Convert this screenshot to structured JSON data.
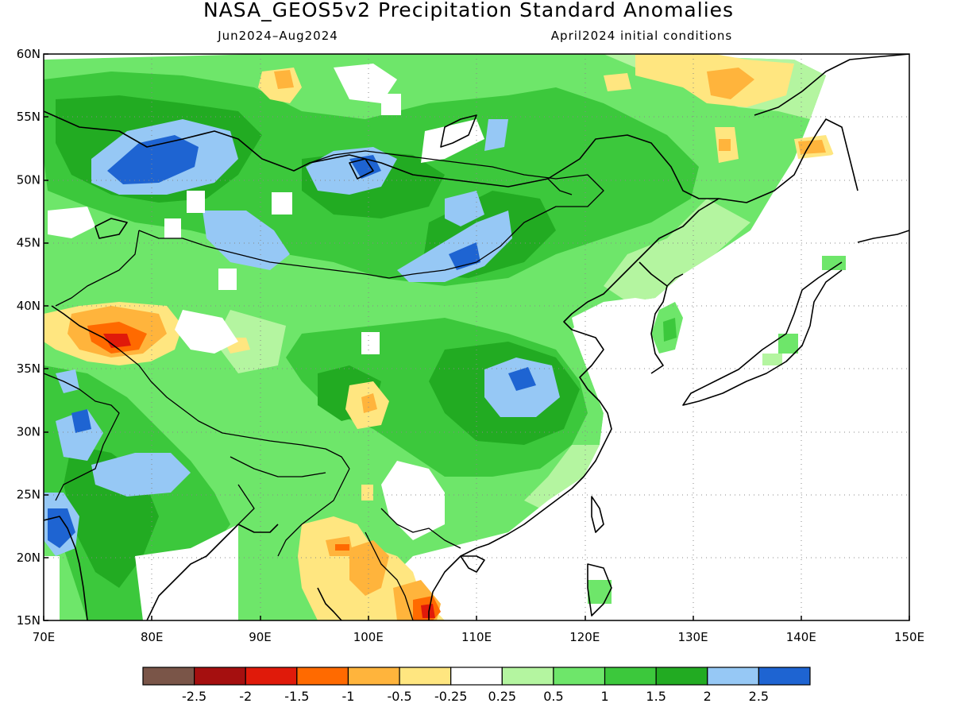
{
  "title": "NASA_GEOS5v2 Precipitation Standard Anomalies",
  "period": "Jun2024–Aug2024",
  "init": "April2024 initial conditions",
  "chart_data": {
    "type": "heatmap",
    "variable": "Precipitation Standard Anomalies",
    "model": "NASA_GEOS5v2",
    "lon_range": [
      70,
      150
    ],
    "lat_range": [
      15,
      60
    ],
    "x_ticks": [
      "70E",
      "80E",
      "90E",
      "100E",
      "110E",
      "120E",
      "130E",
      "140E",
      "150E"
    ],
    "y_ticks": [
      "15N",
      "20N",
      "25N",
      "30N",
      "35N",
      "40N",
      "45N",
      "50N",
      "55N",
      "60N"
    ],
    "grid": "dotted",
    "legend_position": "bottom",
    "colorbar": {
      "labels": [
        "-2.5",
        "-2",
        "-1.5",
        "-1",
        "-0.5",
        "-0.25",
        "0.25",
        "0.5",
        "1",
        "1.5",
        "2",
        "2.5"
      ],
      "colors": [
        "#7a5548",
        "#a50f0f",
        "#e01a0a",
        "#ff6a00",
        "#ffb43c",
        "#ffe680",
        "#ffffff",
        "#b4f5a0",
        "#6ee66a",
        "#3cc83c",
        "#22ab22",
        "#96c8f5",
        "#1e64d2"
      ]
    }
  }
}
